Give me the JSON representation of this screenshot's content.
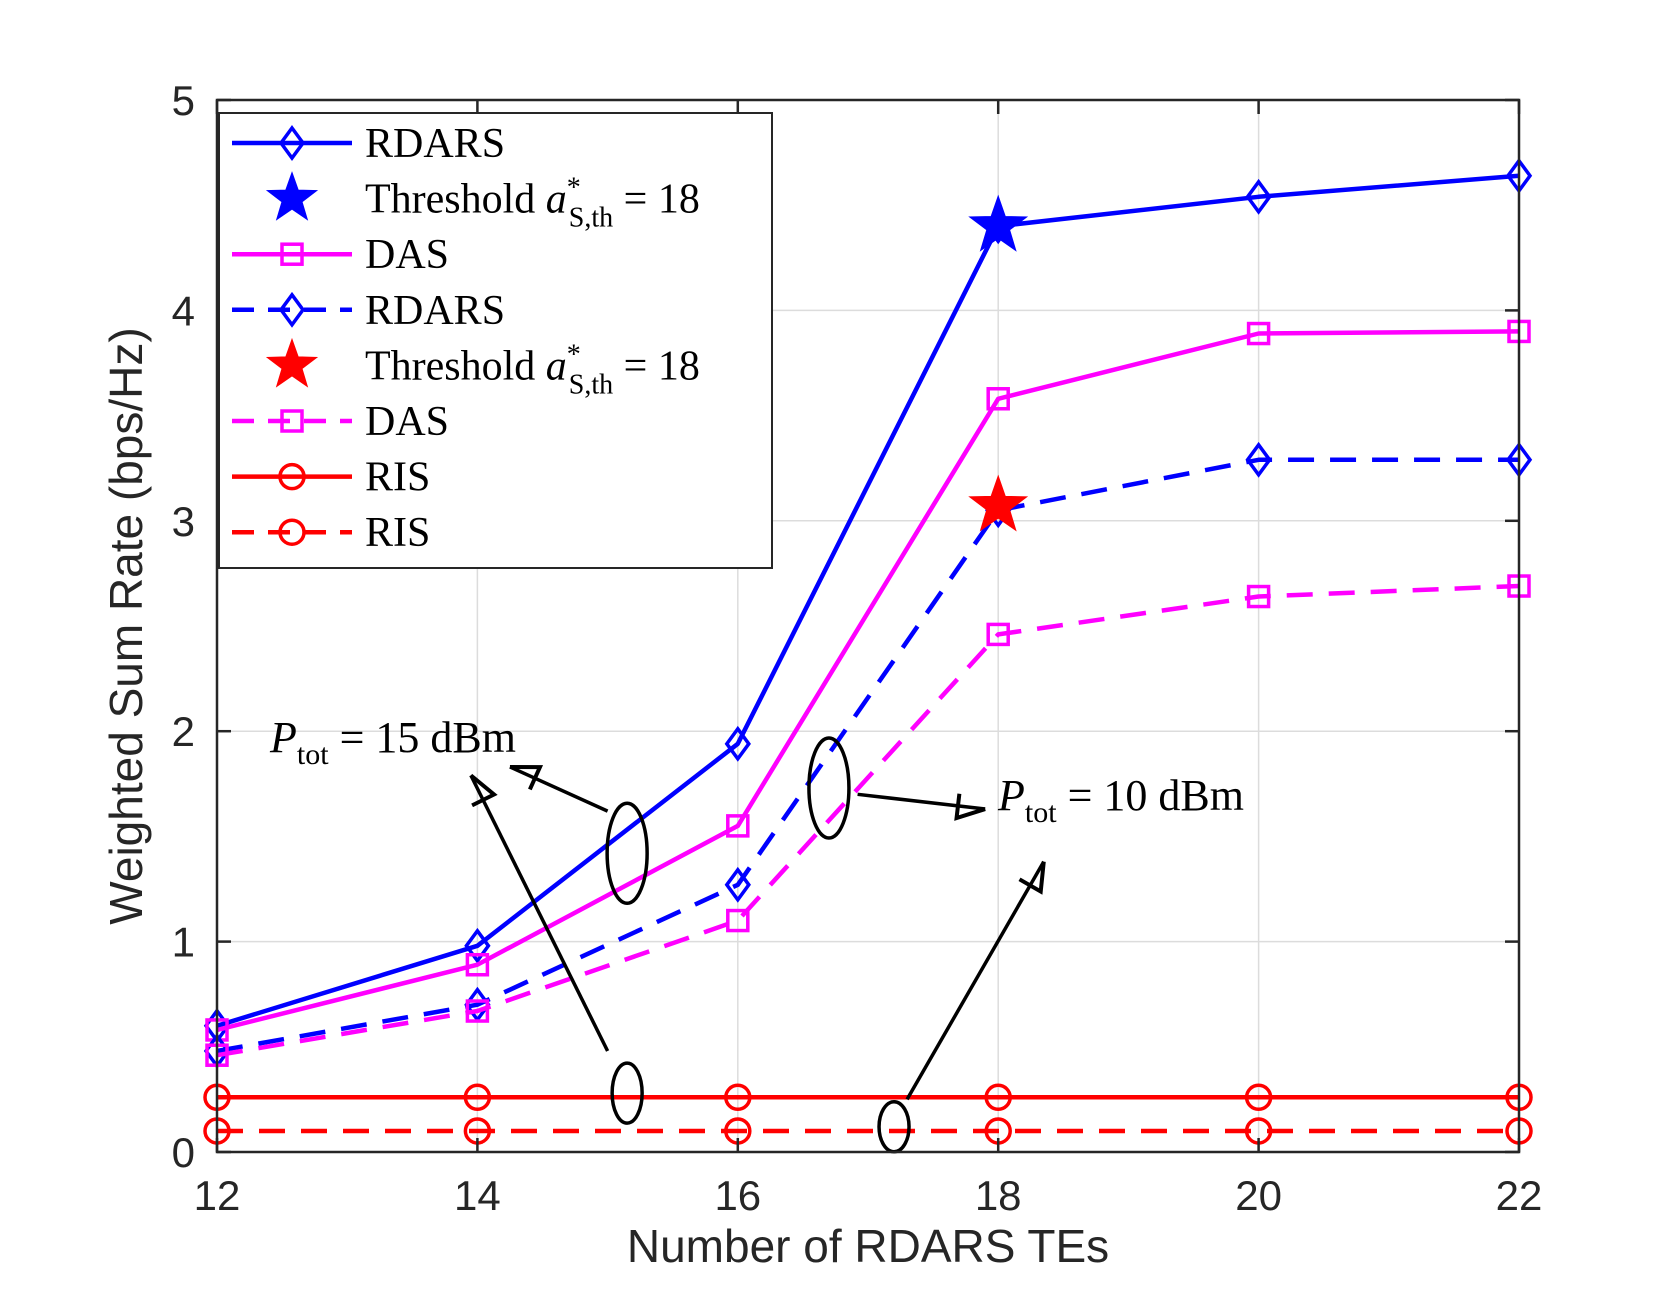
{
  "chart_data": {
    "type": "line",
    "xlabel": "Number of RDARS TEs",
    "ylabel": "Weighted Sum Rate (bps/Hz)",
    "xlim": [
      12,
      22
    ],
    "ylim": [
      0,
      5
    ],
    "xticks": [
      12,
      14,
      16,
      18,
      20,
      22
    ],
    "yticks": [
      0,
      1,
      2,
      3,
      4,
      5
    ],
    "grid": true,
    "legend_position": "top-left",
    "x": [
      12,
      14,
      16,
      18,
      20,
      22
    ],
    "series": [
      {
        "name": "RDARS",
        "group": "P_tot = 15 dBm",
        "color": "#0000ff",
        "dash": "solid",
        "marker": "diamond",
        "values": [
          0.6,
          0.98,
          1.94,
          4.4,
          4.54,
          4.64
        ]
      },
      {
        "name": "DAS",
        "group": "P_tot = 15 dBm",
        "color": "#ff00ff",
        "dash": "solid",
        "marker": "square",
        "values": [
          0.58,
          0.89,
          1.55,
          3.58,
          3.89,
          3.9
        ]
      },
      {
        "name": "RDARS",
        "group": "P_tot = 10 dBm",
        "color": "#0000ff",
        "dash": "dashed",
        "marker": "diamond",
        "values": [
          0.48,
          0.7,
          1.27,
          3.05,
          3.29,
          3.29
        ]
      },
      {
        "name": "DAS",
        "group": "P_tot = 10 dBm",
        "color": "#ff00ff",
        "dash": "dashed",
        "marker": "square",
        "values": [
          0.46,
          0.67,
          1.1,
          2.46,
          2.64,
          2.69
        ]
      },
      {
        "name": "RIS",
        "group": "P_tot = 15 dBm",
        "color": "#ff0000",
        "dash": "solid",
        "marker": "circle",
        "values": [
          0.26,
          0.26,
          0.26,
          0.26,
          0.26,
          0.26
        ]
      },
      {
        "name": "RIS",
        "group": "P_tot = 10 dBm",
        "color": "#ff0000",
        "dash": "dashed",
        "marker": "circle",
        "values": [
          0.1,
          0.1,
          0.1,
          0.1,
          0.1,
          0.1
        ]
      }
    ],
    "threshold_markers": [
      {
        "label": "Threshold",
        "math": "a*S,th = 18",
        "x": 18,
        "y": 4.4,
        "color": "#0000ff"
      },
      {
        "label": "Threshold",
        "math": "a*S,th = 18",
        "x": 18,
        "y": 3.07,
        "color": "#ff0000"
      }
    ],
    "legend": [
      {
        "label": "RDARS",
        "kind": "line",
        "color": "#0000ff",
        "dash": "solid",
        "marker": "diamond"
      },
      {
        "label": "Threshold",
        "kind": "star",
        "color": "#0000ff",
        "math_sym": "a",
        "math_sup": "*",
        "math_sub": "S,th",
        "math_rhs": "= 18"
      },
      {
        "label": "DAS",
        "kind": "line",
        "color": "#ff00ff",
        "dash": "solid",
        "marker": "square"
      },
      {
        "label": "RDARS",
        "kind": "line",
        "color": "#0000ff",
        "dash": "dashed",
        "marker": "diamond"
      },
      {
        "label": "Threshold",
        "kind": "star",
        "color": "#ff0000",
        "math_sym": "a",
        "math_sup": "*",
        "math_sub": "S,th",
        "math_rhs": "= 18"
      },
      {
        "label": "DAS",
        "kind": "line",
        "color": "#ff00ff",
        "dash": "dashed",
        "marker": "square"
      },
      {
        "label": "RIS",
        "kind": "line",
        "color": "#ff0000",
        "dash": "solid",
        "marker": "circle"
      },
      {
        "label": "RIS",
        "kind": "line",
        "color": "#ff0000",
        "dash": "dashed",
        "marker": "circle"
      }
    ],
    "annotations": [
      {
        "sym": "P",
        "sub": "tot",
        "rhs": "= 15 dBm",
        "ellipses": [
          {
            "x": 15.15,
            "y": 1.42
          },
          {
            "x": 15.15,
            "y": 0.28
          }
        ]
      },
      {
        "sym": "P",
        "sub": "tot",
        "rhs": "= 10 dBm",
        "ellipses": [
          {
            "x": 16.7,
            "y": 1.73
          },
          {
            "x": 17.2,
            "y": 0.12
          }
        ]
      }
    ]
  }
}
